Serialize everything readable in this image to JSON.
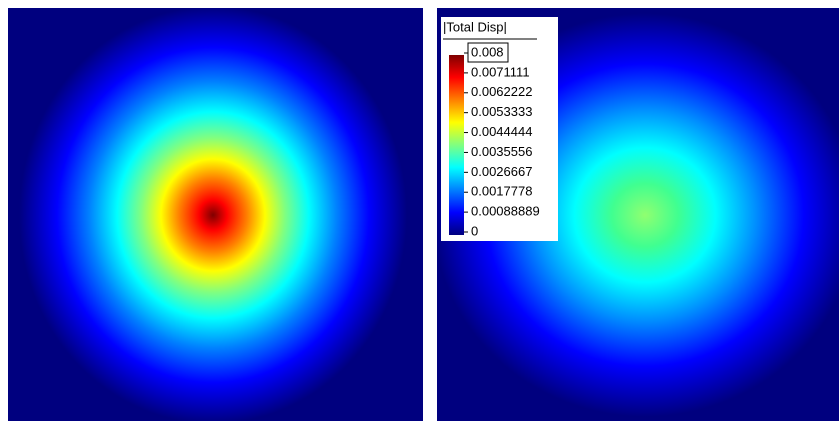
{
  "legend": {
    "title": "|Total Disp|",
    "ticks": [
      "0.008",
      "0.0071111",
      "0.0062222",
      "0.0053333",
      "0.0044444",
      "0.0035556",
      "0.0026667",
      "0.0017778",
      "0.00088889",
      "0"
    ]
  }
}
